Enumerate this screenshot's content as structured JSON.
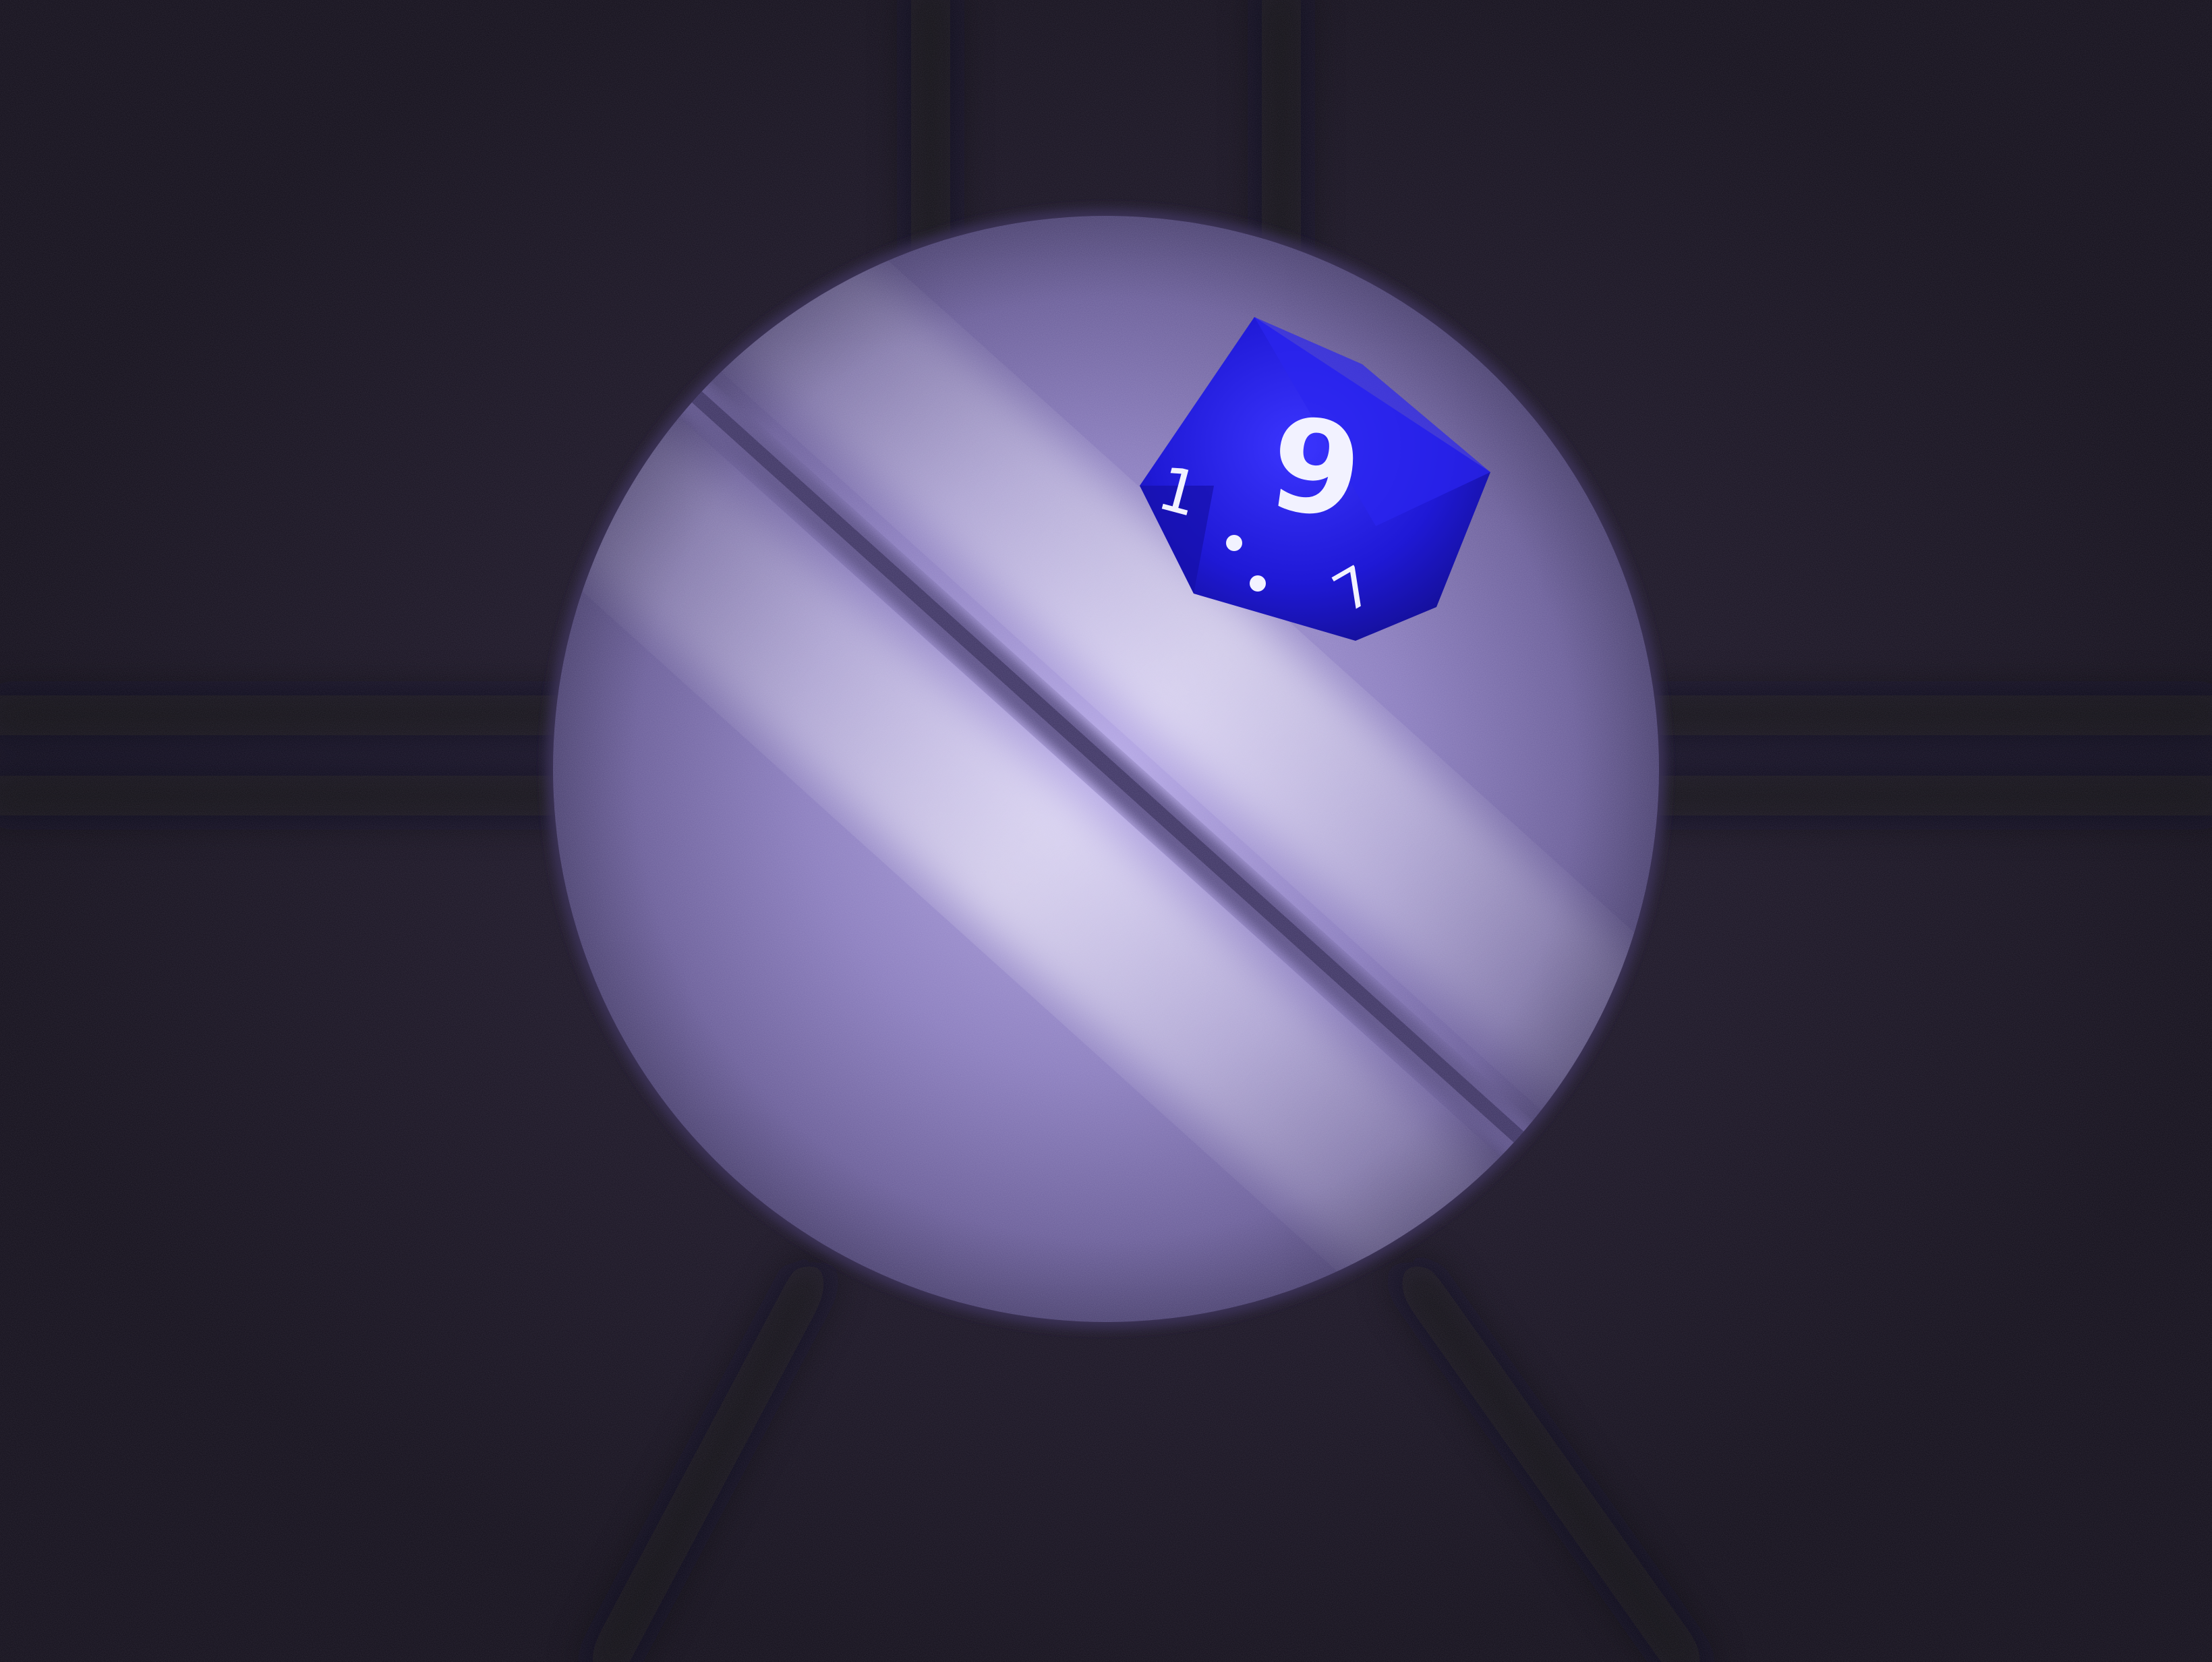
{
  "photo": {
    "subject": "blue-d10-die-on-circular-platform",
    "die": {
      "top_face": "9",
      "side_face_left": "1",
      "side_face_right": "7",
      "color": "#1d17d8",
      "numeral_color": "#f2f2ff"
    },
    "platform_color": "#8f82c4",
    "background_color": "#17121f"
  }
}
